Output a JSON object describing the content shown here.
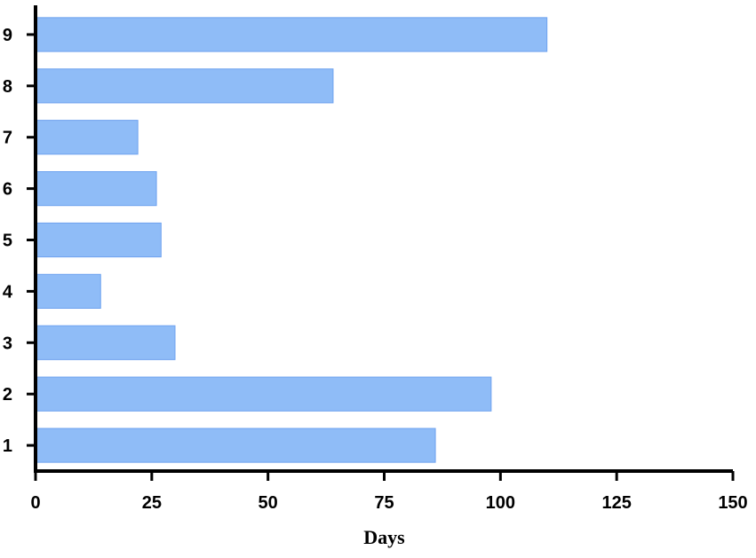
{
  "chart_data": {
    "type": "bar",
    "orientation": "horizontal",
    "categories": [
      "1",
      "2",
      "3",
      "4",
      "5",
      "6",
      "7",
      "8",
      "9"
    ],
    "values": [
      86,
      98,
      30,
      14,
      27,
      26,
      22,
      64,
      110
    ],
    "xlabel": "Days",
    "ylabel": "",
    "xlim": [
      0,
      150
    ],
    "xticks": [
      0,
      25,
      50,
      75,
      100,
      125,
      150
    ],
    "grid": false,
    "bar_color": "#8fbcf7",
    "bar_edge_color": "#6ea2ef"
  }
}
